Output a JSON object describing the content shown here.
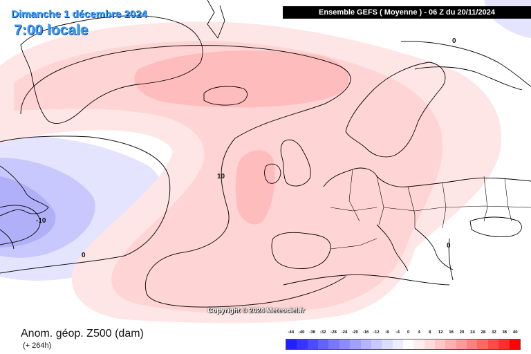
{
  "header": {
    "date": "Dimanche 1 décembre 2024",
    "time": "7:00 locale",
    "model": "Ensemble GEFS  ( Moyenne )  -  06 Z du 20/11/2024"
  },
  "map": {
    "contour_labels": [
      "0",
      "10",
      "-10",
      "0",
      "0"
    ],
    "copyright": "Copyright © 2024 Meteociel.fr"
  },
  "footer": {
    "variable": "Anom. géop. Z500 (dam)",
    "lead_time": "(+ 264h)"
  },
  "legend": {
    "labels": [
      "-44",
      "-40",
      "-36",
      "-32",
      "-28",
      "-24",
      "-20",
      "-16",
      "-12",
      "-8",
      "-4",
      "0",
      "4",
      "8",
      "12",
      "16",
      "20",
      "24",
      "28",
      "32",
      "36",
      "40"
    ],
    "colors": [
      "#1f1fff",
      "#3535ff",
      "#4b4bff",
      "#6262ff",
      "#7878ff",
      "#8c8cff",
      "#a0a0ff",
      "#b4b4ff",
      "#c8c8ff",
      "#dcdcff",
      "#ededff",
      "#ffffff",
      "#ffeeee",
      "#ffdcdc",
      "#ffc8c8",
      "#ffb0b0",
      "#ff9898",
      "#ff8080",
      "#ff6666",
      "#ff4a4a",
      "#ff2e2e",
      "#ff0000"
    ]
  }
}
